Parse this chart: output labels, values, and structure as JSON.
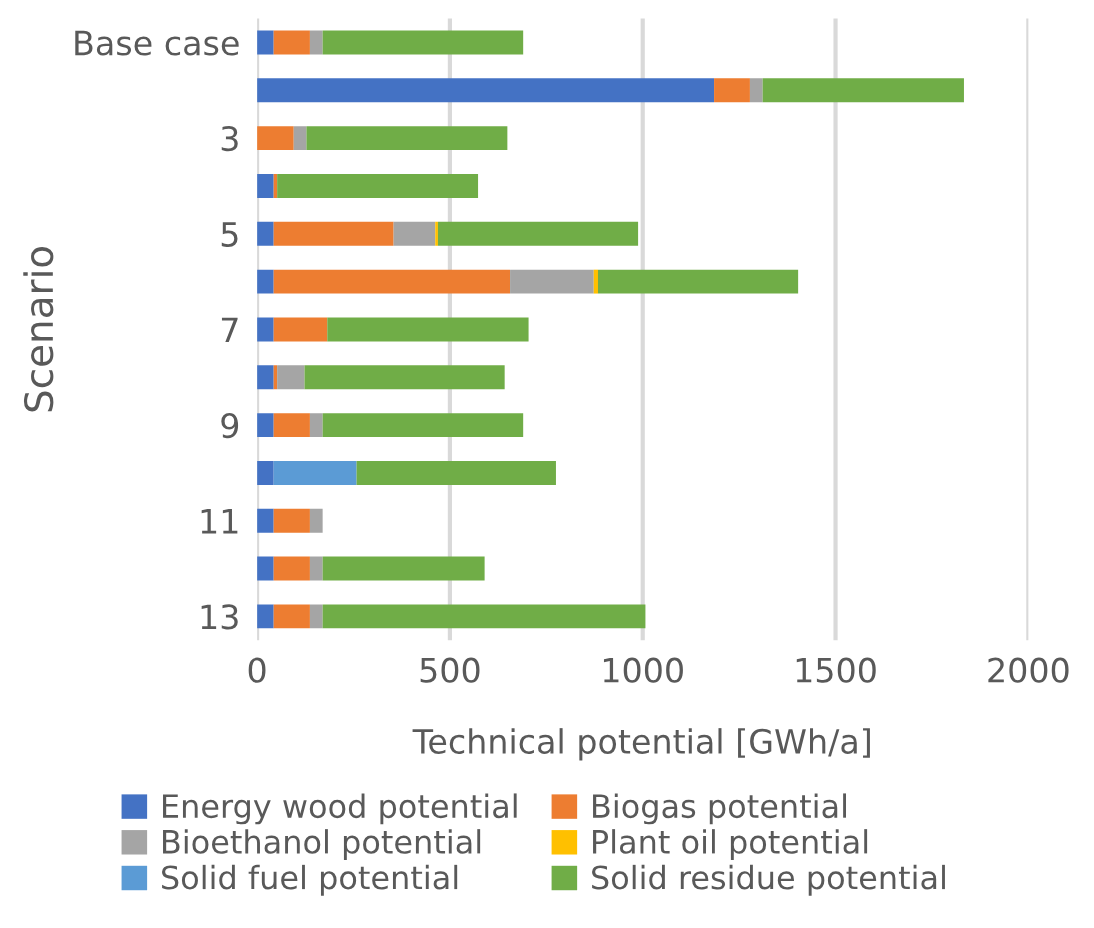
{
  "chart_data": {
    "type": "bar",
    "orientation": "horizontal",
    "stacked": true,
    "categories": [
      "Base case",
      null,
      "3",
      null,
      "5",
      null,
      "7",
      null,
      "9",
      null,
      "11",
      null,
      "13"
    ],
    "series": [
      {
        "name": "Energy wood potential",
        "color": "#4472c4",
        "values": [
          43,
          1185,
          0,
          43,
          43,
          43,
          43,
          43,
          43,
          43,
          43,
          43,
          43
        ]
      },
      {
        "name": "Biogas potential",
        "color": "#ed7d31",
        "values": [
          94,
          93,
          95,
          9,
          311,
          613,
          139,
          9,
          94,
          0,
          94,
          94,
          94
        ]
      },
      {
        "name": "Bioethanol potential",
        "color": "#a5a5a5",
        "values": [
          33,
          33,
          33,
          0,
          108,
          217,
          0,
          71,
          33,
          0,
          33,
          33,
          33
        ]
      },
      {
        "name": "Plant oil potential",
        "color": "#ffc000",
        "values": [
          0,
          0,
          0,
          0,
          7,
          11,
          0,
          0,
          0,
          0,
          0,
          0,
          0
        ]
      },
      {
        "name": "Solid fuel potential",
        "color": "#5b9bd5",
        "values": [
          0,
          0,
          0,
          0,
          0,
          0,
          0,
          0,
          0,
          215,
          0,
          0,
          0
        ]
      },
      {
        "name": "Solid residue potential",
        "color": "#70ad47",
        "values": [
          520,
          522,
          521,
          521,
          519,
          519,
          522,
          519,
          520,
          517,
          0,
          420,
          837
        ]
      }
    ],
    "xlabel": "Technical potential [GWh/a]",
    "ylabel": "Scenario",
    "xlim": [
      0,
      2000
    ],
    "xticks": [
      0,
      500,
      1000,
      1500,
      2000
    ],
    "grid": "x",
    "legend": "bottom"
  }
}
